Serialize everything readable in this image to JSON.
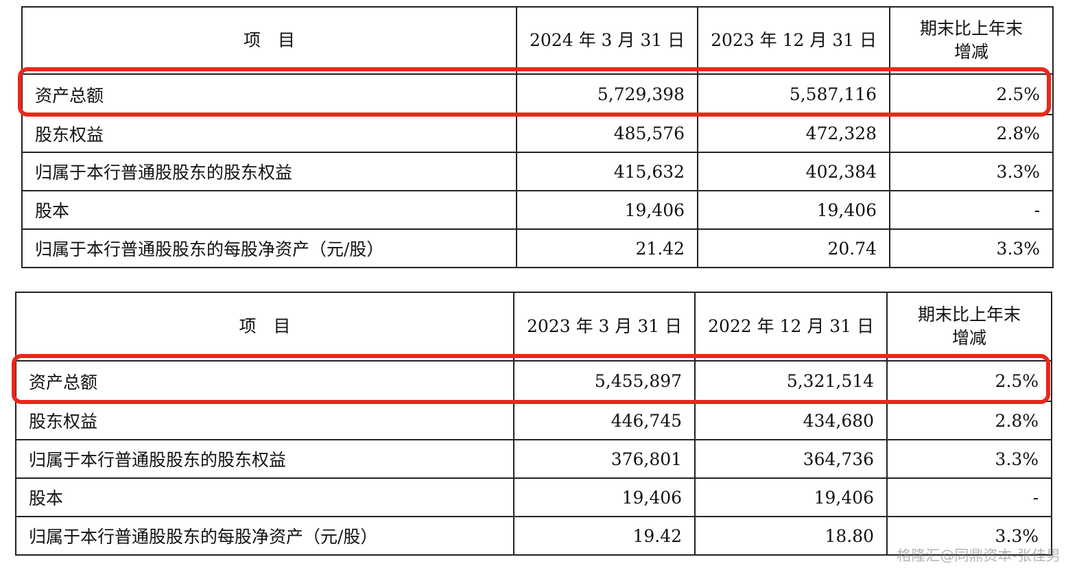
{
  "table1": {
    "header": {
      "item": "项　目",
      "col1": "2024 年 3 月 31 日",
      "col2": "2023 年 12 月 31 日",
      "change_line1": "期末比上年末",
      "change_line2": "增减"
    },
    "rows": [
      {
        "label": "资产总额",
        "v1": "5,729,398",
        "v2": "5,587,116",
        "change": "2.5%"
      },
      {
        "label": "股东权益",
        "v1": "485,576",
        "v2": "472,328",
        "change": "2.8%"
      },
      {
        "label": "归属于本行普通股股东的股东权益",
        "v1": "415,632",
        "v2": "402,384",
        "change": "3.3%"
      },
      {
        "label": "股本",
        "v1": "19,406",
        "v2": "19,406",
        "change": "-"
      },
      {
        "label": "归属于本行普通股股东的每股净资产（元/股）",
        "v1": "21.42",
        "v2": "20.74",
        "change": "3.3%"
      }
    ]
  },
  "table2": {
    "header": {
      "item": "项　目",
      "col1": "2023 年 3 月 31 日",
      "col2": "2022 年 12 月 31 日",
      "change_line1": "期末比上年末",
      "change_line2": "增减"
    },
    "rows": [
      {
        "label": "资产总额",
        "v1": "5,455,897",
        "v2": "5,321,514",
        "change": "2.5%"
      },
      {
        "label": "股东权益",
        "v1": "446,745",
        "v2": "434,680",
        "change": "2.8%"
      },
      {
        "label": "归属于本行普通股股东的股东权益",
        "v1": "376,801",
        "v2": "364,736",
        "change": "3.3%"
      },
      {
        "label": "股本",
        "v1": "19,406",
        "v2": "19,406",
        "change": "-"
      },
      {
        "label": "归属于本行普通股股东的每股净资产（元/股）",
        "v1": "19.42",
        "v2": "18.80",
        "change": "3.3%"
      }
    ]
  },
  "highlight_color": "#e8281b",
  "watermark": "格隆汇@同鼎资本-张佳男"
}
